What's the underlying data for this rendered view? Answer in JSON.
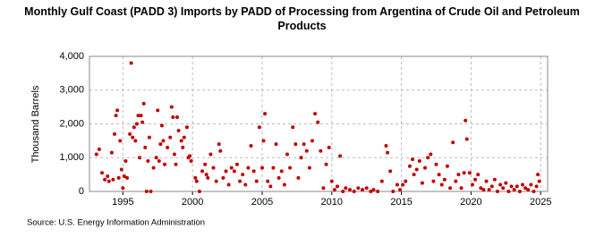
{
  "chart_data": {
    "type": "scatter",
    "title": "Monthly Gulf Coast (PADD 3) Imports by PADD of Processing from Argentina of Crude Oil and Petroleum Products",
    "ylabel": "Thousand Barrels",
    "source": "Source: U.S. Energy Information Administration",
    "color": "#c00000",
    "grid": true,
    "xlim": [
      1992.6,
      2025.5
    ],
    "xticks": [
      1995,
      2000,
      2005,
      2010,
      2015,
      2020,
      2025
    ],
    "ylim": [
      0,
      4000
    ],
    "yticks": [
      0,
      {
        "value": 1000,
        "label": "1,000"
      },
      {
        "value": 2000,
        "label": "2,000"
      },
      {
        "value": 3000,
        "label": "3,000"
      },
      {
        "value": 4000,
        "label": "4,000"
      }
    ],
    "x": [
      1993.1,
      1993.3,
      1993.5,
      1993.7,
      1993.9,
      1994.0,
      1994.2,
      1994.3,
      1994.4,
      1994.5,
      1994.6,
      1994.7,
      1994.8,
      1994.9,
      1995.0,
      1995.1,
      1995.2,
      1995.3,
      1995.5,
      1995.6,
      1995.7,
      1995.8,
      1995.9,
      1996.0,
      1996.1,
      1996.2,
      1996.3,
      1996.4,
      1996.5,
      1996.6,
      1996.7,
      1996.8,
      1996.9,
      1997.0,
      1997.2,
      1997.4,
      1997.5,
      1997.6,
      1997.7,
      1997.8,
      1997.9,
      1998.0,
      1998.2,
      1998.4,
      1998.5,
      1998.6,
      1998.7,
      1998.8,
      1998.9,
      1999.0,
      1999.2,
      1999.3,
      1999.4,
      1999.6,
      1999.7,
      1999.8,
      1999.9,
      2000.2,
      2000.3,
      2000.5,
      2000.7,
      2000.9,
      2001.0,
      2001.1,
      2001.3,
      2001.5,
      2001.7,
      2001.9,
      2002.0,
      2002.2,
      2002.4,
      2002.6,
      2002.8,
      2003.0,
      2003.2,
      2003.4,
      2003.6,
      2003.8,
      2004.0,
      2004.2,
      2004.4,
      2004.6,
      2004.8,
      2005.0,
      2005.1,
      2005.2,
      2005.4,
      2005.6,
      2005.8,
      2006.0,
      2006.2,
      2006.4,
      2006.6,
      2006.8,
      2007.0,
      2007.2,
      2007.4,
      2007.6,
      2007.8,
      2008.0,
      2008.2,
      2008.4,
      2008.6,
      2008.8,
      2009.0,
      2009.2,
      2009.4,
      2009.6,
      2009.8,
      2010.0,
      2010.2,
      2010.4,
      2010.6,
      2010.8,
      2011.0,
      2011.3,
      2011.6,
      2011.9,
      2012.2,
      2012.5,
      2012.8,
      2013.0,
      2013.3,
      2013.6,
      2013.9,
      2014.0,
      2014.2,
      2014.4,
      2014.7,
      2014.9,
      2015.1,
      2015.3,
      2015.6,
      2015.8,
      2015.9,
      2016.1,
      2016.3,
      2016.5,
      2016.7,
      2016.9,
      2017.1,
      2017.3,
      2017.5,
      2017.7,
      2017.9,
      2018.1,
      2018.3,
      2018.5,
      2018.7,
      2018.9,
      2019.1,
      2019.3,
      2019.5,
      2019.6,
      2019.7,
      2019.9,
      2020.1,
      2020.3,
      2020.5,
      2020.7,
      2020.9,
      2021.1,
      2021.3,
      2021.5,
      2021.7,
      2021.9,
      2022.1,
      2022.3,
      2022.5,
      2022.7,
      2022.9,
      2023.1,
      2023.3,
      2023.5,
      2023.7,
      2023.9,
      2024.1,
      2024.3,
      2024.5,
      2024.7,
      2024.8,
      2024.9
    ],
    "values": [
      1100,
      1250,
      550,
      350,
      450,
      300,
      1150,
      350,
      1700,
      2250,
      2400,
      400,
      1500,
      650,
      100,
      450,
      900,
      400,
      1700,
      3800,
      1600,
      1900,
      1500,
      2000,
      2250,
      1000,
      2250,
      2050,
      2600,
      1300,
      0,
      900,
      1600,
      0,
      700,
      1000,
      2400,
      900,
      1400,
      1950,
      1500,
      800,
      1300,
      1600,
      2500,
      2200,
      1100,
      800,
      2200,
      1800,
      1500,
      1300,
      1600,
      1900,
      1000,
      1050,
      900,
      400,
      300,
      0,
      600,
      800,
      500,
      400,
      1100,
      700,
      300,
      1400,
      1200,
      400,
      600,
      200,
      700,
      600,
      800,
      300,
      500,
      200,
      700,
      1350,
      600,
      300,
      1900,
      700,
      1500,
      2300,
      300,
      150,
      700,
      1400,
      400,
      600,
      200,
      1100,
      700,
      1900,
      1400,
      400,
      1000,
      1400,
      1200,
      700,
      1500,
      2300,
      2050,
      1200,
      100,
      800,
      1300,
      300,
      50,
      150,
      1050,
      0,
      100,
      50,
      0,
      100,
      50,
      100,
      0,
      50,
      0,
      300,
      1350,
      1150,
      600,
      0,
      200,
      50,
      200,
      300,
      750,
      950,
      500,
      650,
      900,
      250,
      700,
      1000,
      1100,
      300,
      800,
      500,
      200,
      350,
      750,
      100,
      1450,
      300,
      500,
      100,
      550,
      2100,
      1550,
      550,
      200,
      350,
      500,
      100,
      50,
      300,
      50,
      150,
      350,
      0,
      200,
      100,
      250,
      0,
      150,
      50,
      150,
      0,
      200,
      100,
      50,
      200,
      0,
      150,
      500,
      300
    ]
  }
}
